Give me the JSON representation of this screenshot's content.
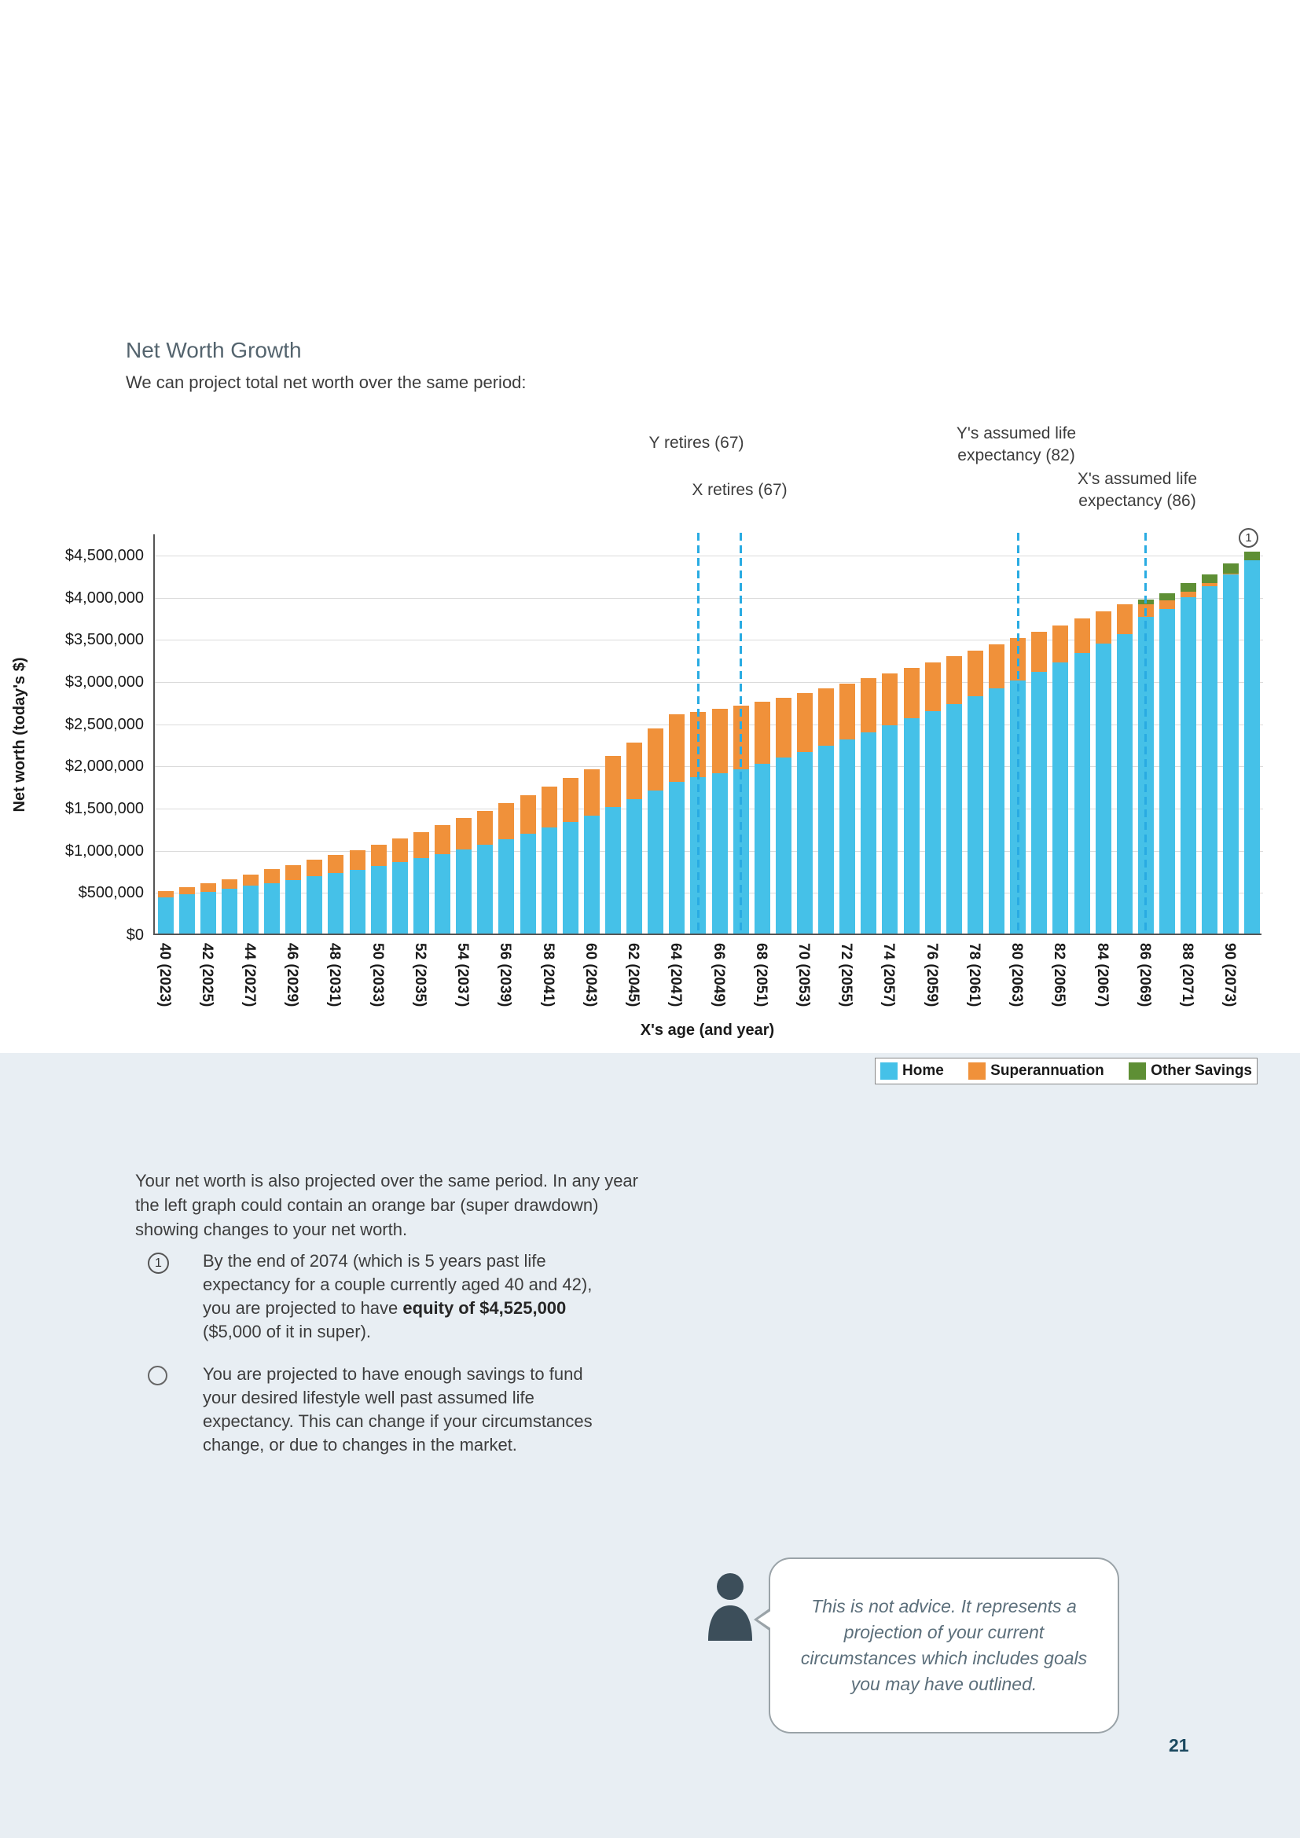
{
  "page": {
    "title": "Net Worth Growth",
    "subtitle": "We can project total net worth over the same period:",
    "page_number": "21"
  },
  "chart_data": {
    "type": "bar",
    "stacked": true,
    "xlabel": "X's age (and year)",
    "ylabel": "Net worth (today's $)",
    "ylim": [
      0,
      4750000
    ],
    "y_tick_step": 500000,
    "y_tick_labels": [
      "$0",
      "$500,000",
      "$1,000,000",
      "$1,500,000",
      "$2,000,000",
      "$2,500,000",
      "$3,000,000",
      "$3,500,000",
      "$4,000,000",
      "$4,500,000"
    ],
    "x": [
      40,
      41,
      42,
      43,
      44,
      45,
      46,
      47,
      48,
      49,
      50,
      51,
      52,
      53,
      54,
      55,
      56,
      57,
      58,
      59,
      60,
      61,
      62,
      63,
      64,
      65,
      66,
      67,
      68,
      69,
      70,
      71,
      72,
      73,
      74,
      75,
      76,
      77,
      78,
      79,
      80,
      81,
      82,
      83,
      84,
      85,
      86,
      87,
      88,
      89,
      90,
      91
    ],
    "x_tick_labels": [
      "40 (2023)",
      "42 (2025)",
      "44 (2027)",
      "46 (2029)",
      "48 (2031)",
      "50 (2033)",
      "52 (2035)",
      "54 (2037)",
      "56 (2039)",
      "58 (2041)",
      "60 (2043)",
      "62 (2045)",
      "64 (2047)",
      "66 (2049)",
      "68 (2051)",
      "70 (2053)",
      "72 (2055)",
      "74 (2057)",
      "76 (2059)",
      "78 (2061)",
      "80 (2063)",
      "82 (2065)",
      "84 (2067)",
      "86 (2069)",
      "88 (2071)",
      "90 (2073)"
    ],
    "series": [
      {
        "name": "Home",
        "color": "#45C1E8",
        "values": [
          430000,
          462000,
          495000,
          529000,
          564000,
          600000,
          637000,
          676000,
          716000,
          757000,
          800000,
          846000,
          894000,
          944000,
          996000,
          1050000,
          1115000,
          1183000,
          1253000,
          1325000,
          1400000,
          1495000,
          1592000,
          1694000,
          1800000,
          1850000,
          1900000,
          1950000,
          2015000,
          2082000,
          2150000,
          2226000,
          2304000,
          2384000,
          2466000,
          2550000,
          2636000,
          2724000,
          2814000,
          2906000,
          3000000,
          3105000,
          3213000,
          3323000,
          3435000,
          3550000,
          3750000,
          3850000,
          3990000,
          4120000,
          4260000,
          4420000
        ]
      },
      {
        "name": "Superannuation",
        "color": "#F0913A",
        "values": [
          70000,
          85000,
          100000,
          117000,
          138000,
          160000,
          178000,
          196000,
          214000,
          232000,
          250000,
          280000,
          310000,
          340000,
          370000,
          400000,
          430000,
          460000,
          490000,
          520000,
          550000,
          610000,
          670000,
          735000,
          800000,
          775000,
          762000,
          750000,
          733000,
          717000,
          700000,
          680000,
          660000,
          640000,
          620000,
          600000,
          580000,
          560000,
          540000,
          520000,
          500000,
          470000,
          440000,
          410000,
          380000,
          350000,
          150000,
          100000,
          60000,
          30000,
          10000,
          5000
        ]
      },
      {
        "name": "Other Savings",
        "color": "#5E8F35",
        "values": [
          0,
          0,
          0,
          0,
          0,
          0,
          0,
          0,
          0,
          0,
          0,
          0,
          0,
          0,
          0,
          0,
          0,
          0,
          0,
          0,
          0,
          0,
          0,
          0,
          0,
          0,
          0,
          0,
          0,
          0,
          0,
          0,
          0,
          0,
          0,
          0,
          0,
          0,
          0,
          0,
          0,
          0,
          0,
          0,
          0,
          0,
          60000,
          80000,
          100000,
          110000,
          115000,
          100000
        ]
      }
    ],
    "reference_lines": [
      {
        "age": 65,
        "label": "Y retires (67)"
      },
      {
        "age": 67,
        "label": "X retires (67)"
      },
      {
        "age": 80,
        "label": "Y's assumed life\nexpectancy (82)"
      },
      {
        "age": 86,
        "label": "X's assumed life\nexpectancy (86)"
      }
    ],
    "colors": {
      "reference_line": "#29ABE2",
      "grid": "#DBDBDB",
      "axis": "#555555"
    },
    "marker": "1",
    "grid": true,
    "legend_position": "bottom-right"
  },
  "body": {
    "intro": "Your net worth is also projected over the same period. In any year the left graph could contain an orange bar (super drawdown) showing changes to your net worth.",
    "point1_num": "1",
    "point1_pre": "By the end of 2074 (which is 5 years past life expectancy for a couple currently aged 40 and 42), you are projected to have ",
    "point1_bold": "equity of $4,525,000",
    "point1_post": " ($5,000 of it in super).",
    "point2": "You are projected to have enough savings to fund your desired lifestyle well past assumed life expectancy. This can change if your circumstances change, or due to changes in the market."
  },
  "callout": {
    "text": "This is not advice. It represents a projection of your current circumstances which includes goals you may have outlined."
  }
}
